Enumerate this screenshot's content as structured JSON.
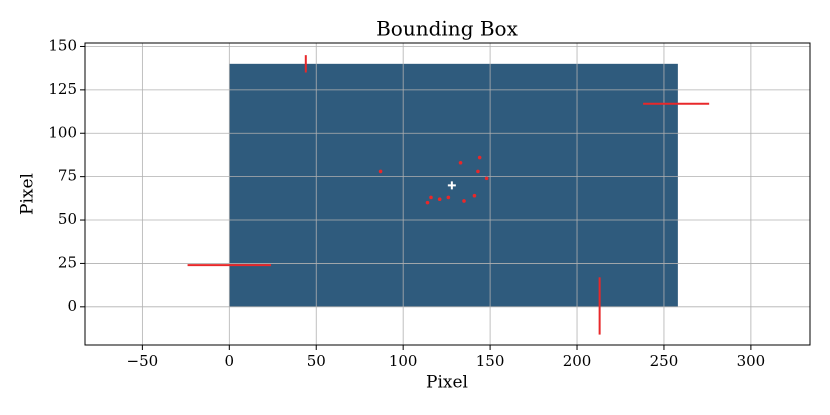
{
  "chart_data": {
    "type": "scatter",
    "title": "Bounding Box",
    "xlabel": "Pixel",
    "ylabel": "Pixel",
    "xlim": [
      -83,
      334
    ],
    "ylim": [
      -22,
      152
    ],
    "xticks": [
      {
        "value": -50,
        "label": "−50"
      },
      0,
      50,
      100,
      150,
      200,
      250,
      300
    ],
    "yticks": [
      0,
      25,
      50,
      75,
      100,
      125,
      150
    ],
    "grid": true,
    "image": {
      "x": [
        0,
        258
      ],
      "y": [
        0,
        140
      ],
      "color": "#2f5b7d"
    },
    "segments": {
      "color": "#e8282a",
      "lines": [
        {
          "x": [
            44,
            44
          ],
          "y": [
            135,
            145
          ]
        },
        {
          "x": [
            238,
            276
          ],
          "y": [
            117,
            117
          ]
        },
        {
          "x": [
            -24,
            24
          ],
          "y": [
            24,
            24
          ]
        },
        {
          "x": [
            213,
            213
          ],
          "y": [
            -16,
            17
          ]
        }
      ]
    },
    "points": {
      "color": "#e8282a",
      "x": [
        87,
        133,
        144,
        143,
        148,
        114,
        116,
        121,
        126,
        135,
        141
      ],
      "y": [
        78,
        83,
        86,
        78,
        74,
        60,
        63,
        62,
        63,
        61,
        64
      ]
    },
    "center": {
      "color": "#ffffff",
      "x": 128,
      "y": 70
    }
  }
}
